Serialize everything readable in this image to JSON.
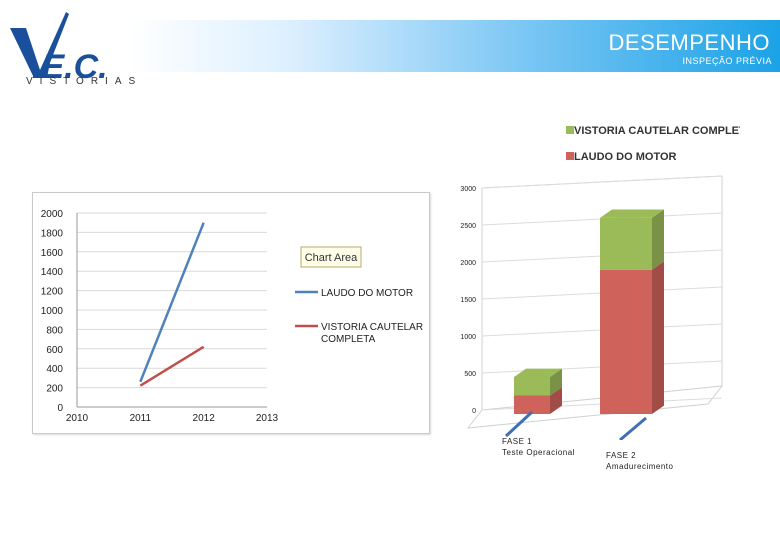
{
  "header": {
    "title": "DESEMPENHO",
    "subtitle": "INSPEÇÃO PRÉVIA",
    "logo_text": "V.E.C.",
    "logo_tagline": "VISTORIAS",
    "accent_color": "#1ba2e6"
  },
  "chart_data": [
    {
      "type": "line",
      "x": [
        2011,
        2012
      ],
      "series": [
        {
          "name": "LAUDO DO MOTOR",
          "values": [
            260,
            1900
          ],
          "color": "#4f81bd"
        },
        {
          "name": "VISTORIA CAUTELAR COMPLETA",
          "values": [
            220,
            620
          ],
          "color": "#c0504d"
        }
      ],
      "xticks": [
        2010,
        2011,
        2012,
        2013
      ],
      "yticks": [
        0,
        200,
        400,
        600,
        800,
        1000,
        1200,
        1400,
        1600,
        1800,
        2000
      ],
      "xlim": [
        2010,
        2013
      ],
      "ylim": [
        0,
        2000
      ],
      "grid": true,
      "legend": "right",
      "tooltip": "Chart Area"
    },
    {
      "type": "bar",
      "stacked": true,
      "style": "3d",
      "categories": [
        "FASE 1",
        "FASE 2"
      ],
      "category_notes": [
        "Teste Operacional",
        "Amadurecimento"
      ],
      "series": [
        {
          "name": "LAUDO DO MOTOR",
          "values": [
            250,
            1950
          ],
          "color": "#d0625c"
        },
        {
          "name": "VISTORIA CAUTELAR COMPLETA",
          "values": [
            250,
            700
          ],
          "color": "#9bbb59"
        }
      ],
      "yticks": [
        0,
        500,
        1000,
        1500,
        2000,
        2500,
        3000
      ],
      "ylim": [
        0,
        3000
      ],
      "grid": true,
      "legend": "top"
    }
  ]
}
